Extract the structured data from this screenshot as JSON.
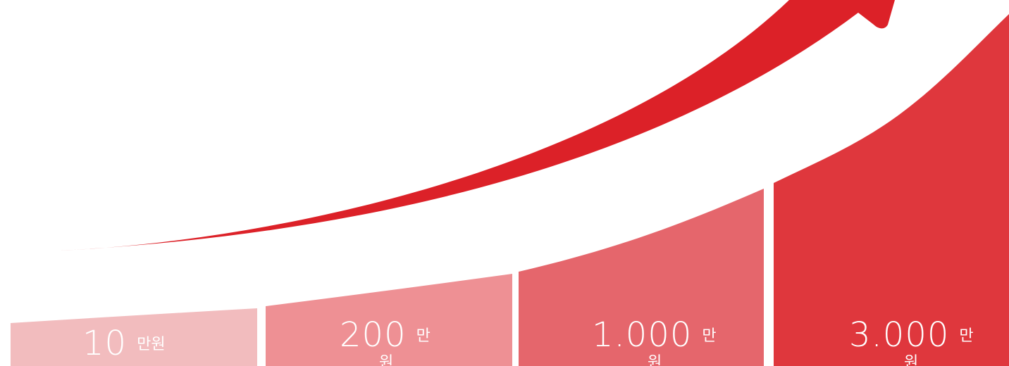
{
  "steps": [
    {
      "value": "10",
      "unit": "만원",
      "unit_overflow": "",
      "color": "#F2BCBE"
    },
    {
      "value": "200",
      "unit": "만",
      "unit_overflow": "원",
      "color": "#EE9094"
    },
    {
      "value": "1.000",
      "unit": "만",
      "unit_overflow": "원",
      "color": "#E5666C"
    },
    {
      "value": "3.000",
      "unit": "만",
      "unit_overflow": "원",
      "color": "#DF373D"
    }
  ],
  "arrow": {
    "color": "#DC2128",
    "direction": "up-right"
  }
}
